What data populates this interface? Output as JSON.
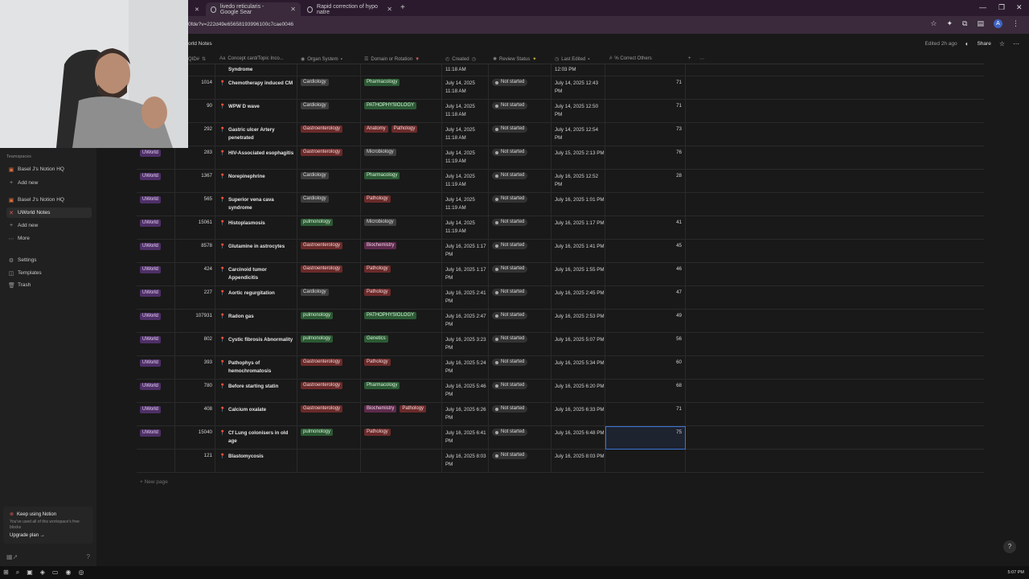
{
  "browser": {
    "tabs": [
      {
        "title": "livedo reticularis - Google Sear"
      },
      {
        "title": "Rapid correction of hypo natre"
      }
    ],
    "url": "0fde?v=222d49e65658193996100c7cae0046"
  },
  "sidebar": {
    "teamspaces_label": "Teamspaces",
    "items": [
      {
        "label": "Basel J's Notion HQ"
      },
      {
        "label": "Add new"
      },
      {
        "label": "Basel J's Notion HQ"
      },
      {
        "label": "UWorld Notes"
      },
      {
        "label": "Add new"
      },
      {
        "label": "More"
      },
      {
        "label": "Settings"
      },
      {
        "label": "Templates"
      },
      {
        "label": "Trash"
      }
    ],
    "promo": {
      "title": "Keep using Notion",
      "desc": "You've used all of this workspace's free blocks",
      "cta": "Upgrade plan"
    }
  },
  "page": {
    "breadcrumb": "orld Notes",
    "edited": "Edited 2h ago",
    "share": "Share",
    "new_page": "New page"
  },
  "columns": [
    {
      "label": "QID#"
    },
    {
      "label": "Concept card/Topic Inco..."
    },
    {
      "label": "Organ System"
    },
    {
      "label": "Domain or Rotation"
    },
    {
      "label": "Created"
    },
    {
      "label": "Review Status"
    },
    {
      "label": "Last Edited"
    },
    {
      "label": "% Correct Others"
    }
  ],
  "top_fragment": {
    "title": "Syndrome",
    "created": "11:18 AM",
    "edited": "12:03 PM"
  },
  "rows": [
    {
      "source": "",
      "qid": "1014",
      "title": "Chemotherapy induced CM",
      "organ": "Cardiology",
      "organ_c": "t-cardio",
      "domains": [
        {
          "l": "Pharmacology",
          "c": "t-pharm"
        }
      ],
      "created": "July 14, 2025 11:18 AM",
      "status": "Not started",
      "edited": "July 14, 2025 12:43 PM",
      "pct": "71"
    },
    {
      "source": "",
      "qid": "90",
      "title": "WPW D wave",
      "organ": "Cardiology",
      "organ_c": "t-cardio",
      "domains": [
        {
          "l": "PATHOPHYSIOLOGY",
          "c": "t-patho"
        }
      ],
      "created": "July 14, 2025 11:18 AM",
      "status": "Not started",
      "edited": "July 14, 2025 12:50 PM",
      "pct": "71"
    },
    {
      "source": "",
      "qid": "292",
      "title": "Gastric ulcer Artery penetrated",
      "organ": "Gastroenterology",
      "organ_c": "t-gastro",
      "domains": [
        {
          "l": "Anatomy",
          "c": "t-anat"
        },
        {
          "l": "Pathology",
          "c": "t-path"
        }
      ],
      "created": "July 14, 2025 11:18 AM",
      "status": "Not started",
      "edited": "July 14, 2025 12:54 PM",
      "pct": "73"
    },
    {
      "source": "UWorld",
      "qid": "283",
      "title": "HIV-Associated esophagitis",
      "organ": "Gastroenterology",
      "organ_c": "t-gastro",
      "domains": [
        {
          "l": "Microbiology",
          "c": "t-micro"
        }
      ],
      "created": "July 14, 2025 11:19 AM",
      "status": "Not started",
      "edited": "July 15, 2025 2:13 PM",
      "pct": "76"
    },
    {
      "source": "UWorld",
      "qid": "1367",
      "title": "Norepinephrine",
      "organ": "Cardiology",
      "organ_c": "t-cardio",
      "domains": [
        {
          "l": "Pharmacology",
          "c": "t-pharm"
        }
      ],
      "created": "July 14, 2025 11:19 AM",
      "status": "Not started",
      "edited": "July 16, 2025 12:52 PM",
      "pct": "28"
    },
    {
      "source": "UWorld",
      "qid": "565",
      "title": "Superior vena cava syndrome",
      "organ": "Cardiology",
      "organ_c": "t-cardio",
      "domains": [
        {
          "l": "Pathology",
          "c": "t-path"
        }
      ],
      "created": "July 14, 2025 11:19 AM",
      "status": "Not started",
      "edited": "July 16, 2025 1:01 PM",
      "pct": ""
    },
    {
      "source": "UWorld",
      "qid": "15061",
      "title": "Histoplasmosis",
      "organ": "pulmonology",
      "organ_c": "t-pulm",
      "domains": [
        {
          "l": "Microbiology",
          "c": "t-micro"
        }
      ],
      "created": "July 14, 2025 11:19 AM",
      "status": "Not started",
      "edited": "July 16, 2025 1:17 PM",
      "pct": "41"
    },
    {
      "source": "UWorld",
      "qid": "8578",
      "title": "Glutamine in astrocytes",
      "organ": "Gastroenterology",
      "organ_c": "t-gastro",
      "domains": [
        {
          "l": "Biochemistry",
          "c": "t-bio"
        }
      ],
      "created": "July 16, 2025 1:17 PM",
      "status": "Not started",
      "edited": "July 16, 2025 1:41 PM",
      "pct": "45"
    },
    {
      "source": "UWorld",
      "qid": "424",
      "title": "Carcinoid tumor Appendicitis",
      "organ": "Gastroenterology",
      "organ_c": "t-gastro",
      "domains": [
        {
          "l": "Pathology",
          "c": "t-path"
        }
      ],
      "created": "July 16, 2025 1:17 PM",
      "status": "Not started",
      "edited": "July 16, 2025 1:55 PM",
      "pct": "46"
    },
    {
      "source": "UWorld",
      "qid": "227",
      "title": "Aortic regurgitation",
      "organ": "Cardiology",
      "organ_c": "t-cardio",
      "domains": [
        {
          "l": "Pathology",
          "c": "t-path"
        }
      ],
      "created": "July 16, 2025 2:41 PM",
      "status": "Not started",
      "edited": "July 16, 2025 2:45 PM",
      "pct": "47"
    },
    {
      "source": "UWorld",
      "qid": "107931",
      "title": "Radon gas",
      "organ": "pulmonology",
      "organ_c": "t-pulm",
      "domains": [
        {
          "l": "PATHOPHYSIOLOGY",
          "c": "t-patho"
        }
      ],
      "created": "July 16, 2025 2:47 PM",
      "status": "Not started",
      "edited": "July 16, 2025 2:53 PM",
      "pct": "49"
    },
    {
      "source": "UWorld",
      "qid": "802",
      "title": "Cystic fibrosis Abnormality",
      "organ": "pulmonology",
      "organ_c": "t-pulm",
      "domains": [
        {
          "l": "Genetics",
          "c": "t-gen"
        }
      ],
      "created": "July 16, 2025 3:23 PM",
      "status": "Not started",
      "edited": "July 16, 2025 5:07 PM",
      "pct": "56"
    },
    {
      "source": "UWorld",
      "qid": "393",
      "title": "Pathophys of hemochromatosis",
      "organ": "Gastroenterology",
      "organ_c": "t-gastro",
      "domains": [
        {
          "l": "Pathology",
          "c": "t-path"
        }
      ],
      "created": "July 16, 2025 5:24 PM",
      "status": "Not started",
      "edited": "July 16, 2025 5:34 PM",
      "pct": "60"
    },
    {
      "source": "UWorld",
      "qid": "780",
      "title": "Before starting statin",
      "organ": "Gastroenterology",
      "organ_c": "t-gastro",
      "domains": [
        {
          "l": "Pharmacology",
          "c": "t-pharm"
        }
      ],
      "created": "July 16, 2025 5:46 PM",
      "status": "Not started",
      "edited": "July 16, 2025 6:20 PM",
      "pct": "68"
    },
    {
      "source": "UWorld",
      "qid": "408",
      "title": "Calcium oxalate",
      "organ": "Gastroenterology",
      "organ_c": "t-gastro",
      "domains": [
        {
          "l": "Biochemistry",
          "c": "t-bio"
        },
        {
          "l": "Pathology",
          "c": "t-path"
        }
      ],
      "created": "July 16, 2025 6:26 PM",
      "status": "Not started",
      "edited": "July 16, 2025 6:33 PM",
      "pct": "71"
    },
    {
      "source": "UWorld",
      "qid": "15040",
      "title": "Cf Lung colonisers in old age",
      "organ": "pulmonology",
      "organ_c": "t-pulm",
      "domains": [
        {
          "l": "Pathology",
          "c": "t-path"
        }
      ],
      "created": "July 16, 2025 6:41 PM",
      "status": "Not started",
      "edited": "July 16, 2025 6:48 PM",
      "pct": "75"
    },
    {
      "source": "",
      "qid": "121",
      "title": "Blastomycosis",
      "organ": "",
      "organ_c": "",
      "domains": [],
      "created": "July 16, 2025 8:03 PM",
      "status": "Not started",
      "edited": "July 16, 2025 8:03 PM",
      "pct": ""
    }
  ],
  "taskbar": {
    "time": "5:07 PM"
  }
}
